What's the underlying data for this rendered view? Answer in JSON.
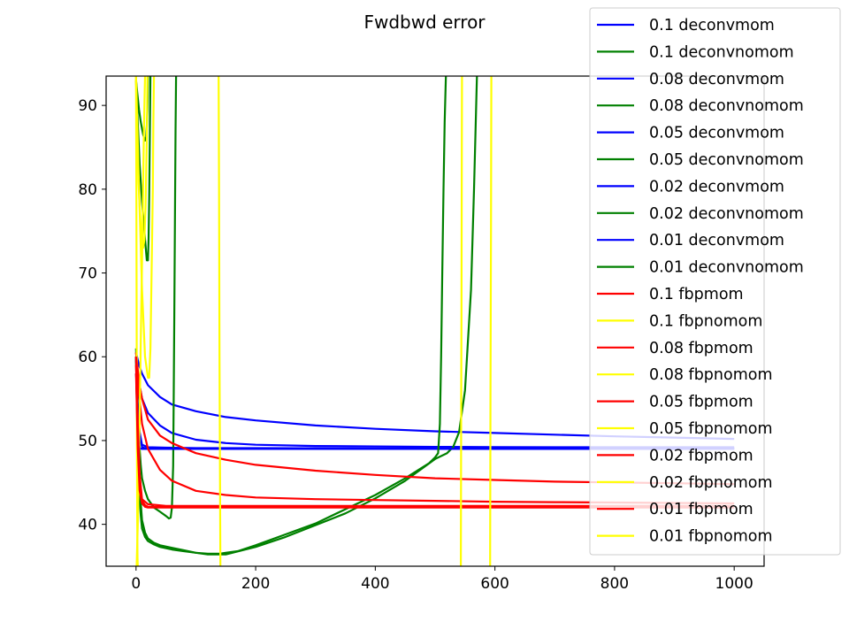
{
  "chart_data": {
    "type": "line",
    "title": "Fwdbwd error",
    "xlabel": "",
    "ylabel": "",
    "xlim": [
      -50,
      1050
    ],
    "ylim": [
      35,
      93.5
    ],
    "xticks": [
      0,
      200,
      400,
      600,
      800,
      1000
    ],
    "yticks": [
      40,
      50,
      60,
      70,
      80,
      90
    ],
    "grid": false,
    "legend_position": "top-right",
    "series": [
      {
        "name": "0.1 deconvmom",
        "color": "#0000ff",
        "x": [
          0,
          5,
          10,
          20,
          40,
          60,
          100,
          150,
          200,
          300,
          400,
          500,
          600,
          700,
          800,
          900,
          1000
        ],
        "y": [
          60.5,
          59,
          58,
          56.6,
          55.2,
          54.3,
          53.5,
          52.8,
          52.4,
          51.8,
          51.4,
          51.1,
          50.9,
          50.7,
          50.5,
          50.35,
          50.2
        ]
      },
      {
        "name": "0.1 deconvnomom",
        "color": "#008000",
        "x": [
          0,
          2,
          5,
          8,
          12,
          15,
          17,
          18,
          19,
          19.5,
          20
        ],
        "y": [
          93,
          91.5,
          89.5,
          88,
          86.5,
          85.8,
          86.2,
          87.5,
          89.5,
          91,
          93.5
        ]
      },
      {
        "name": "0.08 deconvmom",
        "color": "#0000ff",
        "x": [
          0,
          5,
          10,
          20,
          40,
          60,
          100,
          150,
          200,
          300,
          400,
          500,
          600,
          700,
          800,
          900,
          1000
        ],
        "y": [
          59.5,
          57,
          55,
          53.3,
          51.8,
          50.9,
          50.1,
          49.7,
          49.5,
          49.35,
          49.3,
          49.25,
          49.22,
          49.2,
          49.2,
          49.2,
          49.2
        ]
      },
      {
        "name": "0.08 deconvnomom",
        "color": "#008000",
        "x": [
          0,
          3,
          6,
          10,
          15,
          18,
          20,
          21,
          22,
          23,
          24
        ],
        "y": [
          93,
          88,
          83,
          78.5,
          74,
          71.5,
          71.5,
          74,
          79,
          86,
          93.5
        ]
      },
      {
        "name": "0.05 deconvmom",
        "color": "#0000ff",
        "x": [
          0,
          3,
          6,
          10,
          20,
          50,
          100,
          200,
          400,
          600,
          800,
          1000
        ],
        "y": [
          58,
          54,
          51,
          49.5,
          49.2,
          49.15,
          49.1,
          49.1,
          49.05,
          49.05,
          49.05,
          49.05
        ]
      },
      {
        "name": "0.05 deconvnomom",
        "color": "#008000",
        "x": [
          0,
          2,
          4,
          6,
          8,
          10,
          15,
          20,
          30,
          40,
          50,
          55,
          58,
          60,
          62,
          63,
          64,
          65,
          66,
          67
        ],
        "y": [
          61,
          56,
          52,
          49,
          47,
          45.5,
          44,
          43,
          42,
          41.5,
          41,
          40.7,
          40.8,
          42,
          47,
          55,
          65,
          76,
          87,
          93.5
        ]
      },
      {
        "name": "0.02 deconvmom",
        "color": "#0000ff",
        "x": [
          3,
          5,
          10,
          20,
          50,
          100,
          200,
          400,
          600,
          800,
          1000
        ],
        "y": [
          49.5,
          49.1,
          49,
          49,
          49,
          49,
          49,
          49,
          49,
          49,
          49
        ]
      },
      {
        "name": "0.02 deconvnomom",
        "color": "#008000",
        "x": [
          0,
          2,
          5,
          8,
          10,
          15,
          20,
          30,
          40,
          60,
          80,
          100,
          120,
          150,
          200,
          250,
          300,
          350,
          400,
          450,
          500,
          520,
          530,
          540,
          550,
          560,
          565,
          570
        ],
        "y": [
          60,
          52,
          46,
          42.5,
          40.5,
          39,
          38.3,
          37.8,
          37.5,
          37.2,
          36.9,
          36.6,
          36.4,
          36.4,
          37.3,
          38.5,
          39.9,
          41.3,
          43.1,
          45.2,
          47.8,
          48.5,
          49.2,
          51,
          56,
          68,
          80,
          93.5
        ]
      },
      {
        "name": "0.01 deconvmom",
        "color": "#0000ff",
        "x": [
          0,
          2,
          5,
          10,
          20,
          50,
          100,
          200,
          400,
          600,
          800,
          1000
        ],
        "y": [
          60,
          55,
          51,
          49.2,
          49,
          49,
          49,
          49,
          49,
          49,
          49,
          49
        ]
      },
      {
        "name": "0.01 deconvnomom",
        "color": "#008000",
        "x": [
          0,
          2,
          5,
          8,
          10,
          15,
          20,
          30,
          40,
          60,
          80,
          100,
          120,
          140,
          170,
          200,
          250,
          300,
          350,
          400,
          450,
          490,
          500,
          505,
          508,
          510,
          512,
          514,
          516,
          518
        ],
        "y": [
          60,
          51,
          44,
          41,
          39.5,
          38.5,
          38,
          37.6,
          37.3,
          37,
          36.8,
          36.6,
          36.5,
          36.5,
          36.8,
          37.5,
          38.8,
          40.1,
          41.8,
          43.5,
          45.5,
          47.3,
          48,
          48.5,
          52,
          60,
          70,
          80,
          88,
          93.5
        ]
      },
      {
        "name": "0.1 fbpmom",
        "color": "#ff0000",
        "x": [
          0,
          5,
          10,
          20,
          40,
          60,
          100,
          150,
          200,
          300,
          400,
          500,
          600,
          700,
          800,
          900,
          1000
        ],
        "y": [
          60.5,
          57,
          55,
          52.5,
          50.6,
          49.7,
          48.5,
          47.7,
          47.1,
          46.4,
          45.9,
          45.5,
          45.3,
          45.1,
          45,
          44.9,
          44.8
        ]
      },
      {
        "name": "0.1 fbpnomom",
        "color": "#ffff00",
        "x": [
          0,
          0.5,
          1,
          1.5,
          2,
          2.5,
          3
        ],
        "y": [
          93.5,
          80,
          65,
          50,
          40,
          36,
          35
        ]
      },
      {
        "name": "0.08 fbpmom",
        "color": "#ff0000",
        "x": [
          0,
          5,
          10,
          20,
          40,
          60,
          100,
          150,
          200,
          300,
          400,
          500,
          600,
          700,
          800,
          900,
          1000
        ],
        "y": [
          60,
          55.5,
          52,
          49,
          46.5,
          45.2,
          44,
          43.5,
          43.2,
          43,
          42.9,
          42.8,
          42.7,
          42.65,
          42.6,
          42.55,
          42.5
        ]
      },
      {
        "name": "0.08 fbpnomom",
        "color": "#ffff00",
        "x": [
          1,
          3,
          5,
          8,
          11,
          13,
          14,
          15
        ],
        "y": [
          35,
          40,
          48,
          62,
          76,
          86,
          90,
          93.5
        ]
      },
      {
        "name": "0.05 fbpmom",
        "color": "#ff0000",
        "x": [
          0,
          3,
          6,
          10,
          20,
          50,
          100,
          200,
          400,
          600,
          800,
          1000
        ],
        "y": [
          60,
          52,
          46,
          43,
          42.4,
          42.2,
          42.2,
          42.2,
          42.2,
          42.2,
          42.2,
          42.2
        ]
      },
      {
        "name": "0.05 fbpnomom",
        "color": "#ffff00",
        "x": [
          0,
          2,
          4,
          6,
          8,
          10,
          12,
          14,
          16,
          18,
          19
        ],
        "y": [
          93,
          86,
          81,
          78,
          75.5,
          73.5,
          73,
          74,
          78,
          86,
          93.5
        ]
      },
      {
        "name": "0.02 fbpmom",
        "color": "#ff0000",
        "x": [
          0,
          3,
          6,
          10,
          15,
          20,
          50,
          100,
          200,
          400,
          600,
          800,
          1000
        ],
        "y": [
          59,
          50,
          45,
          42.8,
          42.3,
          42.1,
          42.1,
          42.1,
          42.1,
          42.1,
          42.1,
          42.1,
          42.1
        ]
      },
      {
        "name": "0.02 fbpnomom",
        "color": "#ffff00",
        "x": [
          0,
          5,
          10,
          15,
          20,
          22,
          24,
          26,
          28,
          29,
          30
        ],
        "y": [
          93.5,
          80,
          68,
          60,
          57.5,
          57.5,
          61,
          70,
          80,
          88,
          93.5
        ]
      },
      {
        "name": "0.01 fbpmom",
        "color": "#ff0000",
        "x": [
          0,
          3,
          6,
          10,
          15,
          20,
          50,
          100,
          200,
          400,
          600,
          800,
          1000
        ],
        "y": [
          58,
          49,
          44,
          42.5,
          42.1,
          42,
          42,
          42,
          42,
          42,
          42,
          42,
          42
        ]
      },
      {
        "name": "0.01 fbpnomom",
        "color": "#ffff00",
        "x": [
          138,
          138.8,
          139.6,
          140.4,
          141
        ],
        "y": [
          93.5,
          80,
          60,
          45,
          35
        ]
      }
    ],
    "extra_lines": [
      {
        "color": "#ffff00",
        "x": [
          543,
          543.3,
          543.6,
          544,
          544.4,
          544.7,
          545
        ],
        "y": [
          35,
          45,
          55,
          65,
          75,
          85,
          93.5
        ]
      },
      {
        "color": "#ffff00",
        "x": [
          592,
          592.3,
          592.6,
          593,
          593.4,
          593.7,
          594
        ],
        "y": [
          35,
          45,
          55,
          65,
          75,
          85,
          93.5
        ]
      }
    ]
  }
}
